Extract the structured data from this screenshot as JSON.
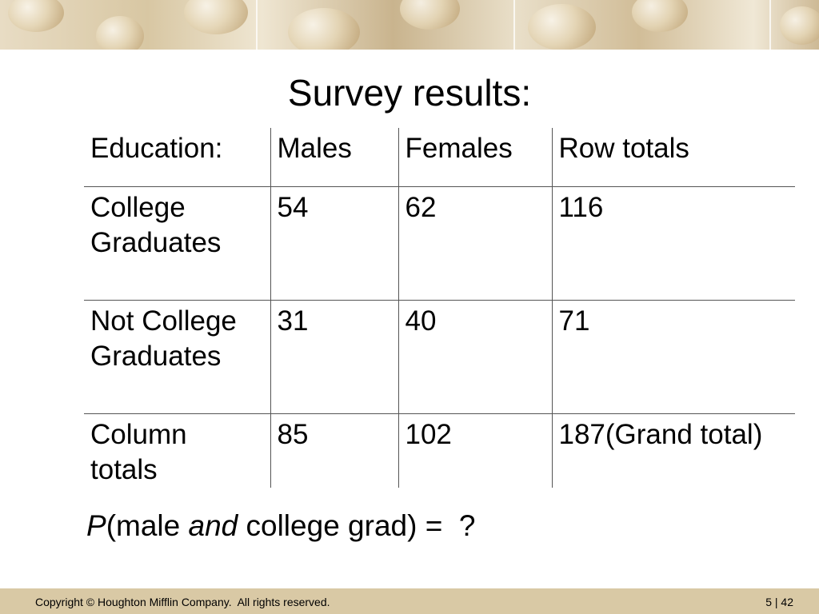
{
  "slide": {
    "title": "Survey results:",
    "table": {
      "headers": [
        "Education:",
        "Males",
        "Females",
        "Row totals"
      ],
      "rows": [
        {
          "label_line1": "College",
          "label_line2": "Graduates",
          "males": "54",
          "females": "62",
          "total": "116"
        },
        {
          "label_line1": "Not College",
          "label_line2": "Graduates",
          "males": "31",
          "females": "40",
          "total": "71"
        },
        {
          "label_line1": "Column",
          "label_line2": "totals",
          "males": "85",
          "females": "102",
          "total": "187(Grand total)"
        }
      ]
    },
    "question": {
      "p": "P",
      "open": "(male ",
      "and": "and",
      "rest": " college grad) =  ?"
    }
  },
  "footer": {
    "copyright": "Copyright © Houghton Mifflin Company.  All rights reserved.",
    "page_number": "5 | 42"
  }
}
